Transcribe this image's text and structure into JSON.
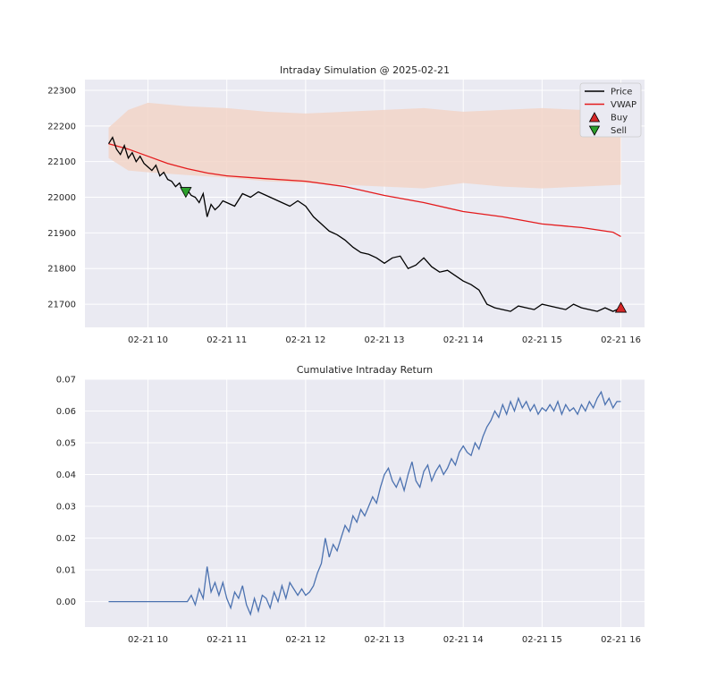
{
  "chart_data": [
    {
      "type": "line",
      "title": "Intraday Simulation @ 2025-02-21",
      "xlabel": "",
      "ylabel": "",
      "x_ticks": [
        "02-21 10",
        "02-21 11",
        "02-21 12",
        "02-21 13",
        "02-21 14",
        "02-21 15",
        "02-21 16"
      ],
      "x_range_hours": [
        9.2,
        16.3
      ],
      "y_ticks": [
        21700,
        21800,
        21900,
        22000,
        22100,
        22200,
        22300
      ],
      "ylim": [
        21635,
        22330
      ],
      "grid": true,
      "legend_position": "top-right",
      "legend": {
        "price": "Price",
        "vwap": "VWAP",
        "buy": "Buy",
        "sell": "Sell"
      },
      "colors": {
        "price": "#000000",
        "vwap": "#e41a1c",
        "buy": "#d62728",
        "sell": "#2ca02c",
        "band": "#f2d5c8"
      },
      "price": {
        "x": [
          9.5,
          9.55,
          9.6,
          9.65,
          9.7,
          9.75,
          9.8,
          9.85,
          9.9,
          9.95,
          10.0,
          10.05,
          10.1,
          10.15,
          10.2,
          10.25,
          10.3,
          10.35,
          10.4,
          10.45,
          10.5,
          10.55,
          10.6,
          10.65,
          10.7,
          10.75,
          10.8,
          10.85,
          10.9,
          10.95,
          11.0,
          11.1,
          11.2,
          11.3,
          11.4,
          11.5,
          11.6,
          11.7,
          11.8,
          11.9,
          12.0,
          12.1,
          12.2,
          12.3,
          12.4,
          12.5,
          12.6,
          12.7,
          12.8,
          12.9,
          13.0,
          13.1,
          13.2,
          13.3,
          13.4,
          13.5,
          13.6,
          13.7,
          13.8,
          13.9,
          14.0,
          14.1,
          14.2,
          14.3,
          14.4,
          14.5,
          14.6,
          14.7,
          14.8,
          14.9,
          15.0,
          15.1,
          15.2,
          15.3,
          15.4,
          15.5,
          15.6,
          15.7,
          15.8,
          15.9,
          16.0
        ],
        "y": [
          22150,
          22168,
          22135,
          22120,
          22145,
          22110,
          22125,
          22100,
          22115,
          22095,
          22085,
          22075,
          22090,
          22060,
          22070,
          22050,
          22045,
          22030,
          22040,
          22015,
          22020,
          22005,
          22000,
          21985,
          22010,
          21945,
          21980,
          21965,
          21975,
          21990,
          21985,
          21975,
          22010,
          22000,
          22015,
          22005,
          21995,
          21985,
          21975,
          21990,
          21975,
          21945,
          21925,
          21905,
          21895,
          21880,
          21860,
          21845,
          21840,
          21830,
          21815,
          21830,
          21835,
          21800,
          21810,
          21830,
          21805,
          21790,
          21795,
          21780,
          21765,
          21755,
          21740,
          21700,
          21690,
          21685,
          21680,
          21695,
          21690,
          21685,
          21700,
          21695,
          21690,
          21685,
          21700,
          21690,
          21685,
          21680,
          21690,
          21680,
          21690
        ]
      },
      "vwap": {
        "x": [
          9.5,
          9.75,
          10.0,
          10.25,
          10.5,
          10.75,
          11.0,
          11.5,
          12.0,
          12.5,
          13.0,
          13.5,
          14.0,
          14.5,
          15.0,
          15.5,
          15.9,
          16.0
        ],
        "y": [
          22150,
          22135,
          22115,
          22095,
          22080,
          22068,
          22060,
          22052,
          22045,
          22030,
          22005,
          21985,
          21960,
          21945,
          21925,
          21915,
          21902,
          21890
        ]
      },
      "band": {
        "x": [
          9.5,
          9.75,
          10.0,
          10.5,
          11.0,
          11.5,
          12.0,
          12.5,
          13.0,
          13.5,
          14.0,
          14.5,
          15.0,
          15.5,
          16.0
        ],
        "upper": [
          22195,
          22245,
          22265,
          22255,
          22250,
          22240,
          22235,
          22240,
          22245,
          22250,
          22240,
          22245,
          22250,
          22245,
          22255
        ],
        "lower": [
          22110,
          22075,
          22070,
          22062,
          22055,
          22045,
          22040,
          22035,
          22030,
          22025,
          22040,
          22030,
          22025,
          22030,
          22035
        ]
      },
      "trades": {
        "buy": [
          {
            "x": 16.0,
            "y": 21690
          }
        ],
        "sell": [
          {
            "x": 10.48,
            "y": 22015
          }
        ]
      }
    },
    {
      "type": "line",
      "title": "Cumulative Intraday Return",
      "xlabel": "",
      "ylabel": "",
      "x_ticks": [
        "02-21 10",
        "02-21 11",
        "02-21 12",
        "02-21 13",
        "02-21 14",
        "02-21 15",
        "02-21 16"
      ],
      "x_range_hours": [
        9.2,
        16.3
      ],
      "y_ticks": [
        "0.00",
        "0.01",
        "0.02",
        "0.03",
        "0.04",
        "0.05",
        "0.06",
        "0.07"
      ],
      "ylim": [
        -0.008,
        0.07
      ],
      "grid": true,
      "colors": {
        "line": "#4c72b0"
      },
      "series": {
        "x": [
          9.5,
          10.0,
          10.45,
          10.5,
          10.55,
          10.6,
          10.65,
          10.7,
          10.75,
          10.8,
          10.85,
          10.9,
          10.95,
          11.0,
          11.05,
          11.1,
          11.15,
          11.2,
          11.25,
          11.3,
          11.35,
          11.4,
          11.45,
          11.5,
          11.55,
          11.6,
          11.65,
          11.7,
          11.75,
          11.8,
          11.85,
          11.9,
          11.95,
          12.0,
          12.05,
          12.1,
          12.15,
          12.2,
          12.25,
          12.3,
          12.35,
          12.4,
          12.45,
          12.5,
          12.55,
          12.6,
          12.65,
          12.7,
          12.75,
          12.8,
          12.85,
          12.9,
          12.95,
          13.0,
          13.05,
          13.1,
          13.15,
          13.2,
          13.25,
          13.3,
          13.35,
          13.4,
          13.45,
          13.5,
          13.55,
          13.6,
          13.65,
          13.7,
          13.75,
          13.8,
          13.85,
          13.9,
          13.95,
          14.0,
          14.05,
          14.1,
          14.15,
          14.2,
          14.25,
          14.3,
          14.35,
          14.4,
          14.45,
          14.5,
          14.55,
          14.6,
          14.65,
          14.7,
          14.75,
          14.8,
          14.85,
          14.9,
          14.95,
          15.0,
          15.05,
          15.1,
          15.15,
          15.2,
          15.25,
          15.3,
          15.35,
          15.4,
          15.45,
          15.5,
          15.55,
          15.6,
          15.65,
          15.7,
          15.75,
          15.8,
          15.85,
          15.9,
          15.95,
          16.0
        ],
        "y": [
          0.0,
          0.0,
          0.0,
          0.0,
          0.002,
          -0.001,
          0.004,
          0.001,
          0.011,
          0.003,
          0.006,
          0.002,
          0.006,
          0.001,
          -0.002,
          0.003,
          0.001,
          0.005,
          -0.001,
          -0.004,
          0.001,
          -0.003,
          0.002,
          0.001,
          -0.002,
          0.003,
          0.0,
          0.005,
          0.001,
          0.006,
          0.004,
          0.002,
          0.004,
          0.002,
          0.003,
          0.005,
          0.009,
          0.012,
          0.02,
          0.014,
          0.018,
          0.016,
          0.02,
          0.024,
          0.022,
          0.027,
          0.025,
          0.029,
          0.027,
          0.03,
          0.033,
          0.031,
          0.036,
          0.04,
          0.042,
          0.038,
          0.036,
          0.039,
          0.035,
          0.04,
          0.044,
          0.038,
          0.036,
          0.041,
          0.043,
          0.038,
          0.041,
          0.043,
          0.04,
          0.042,
          0.045,
          0.043,
          0.047,
          0.049,
          0.047,
          0.046,
          0.05,
          0.048,
          0.052,
          0.055,
          0.057,
          0.06,
          0.058,
          0.062,
          0.059,
          0.063,
          0.06,
          0.064,
          0.061,
          0.063,
          0.06,
          0.062,
          0.059,
          0.061,
          0.06,
          0.062,
          0.06,
          0.063,
          0.059,
          0.062,
          0.06,
          0.061,
          0.059,
          0.062,
          0.06,
          0.063,
          0.061,
          0.064,
          0.066,
          0.062,
          0.064,
          0.061,
          0.063,
          0.063
        ]
      }
    }
  ]
}
